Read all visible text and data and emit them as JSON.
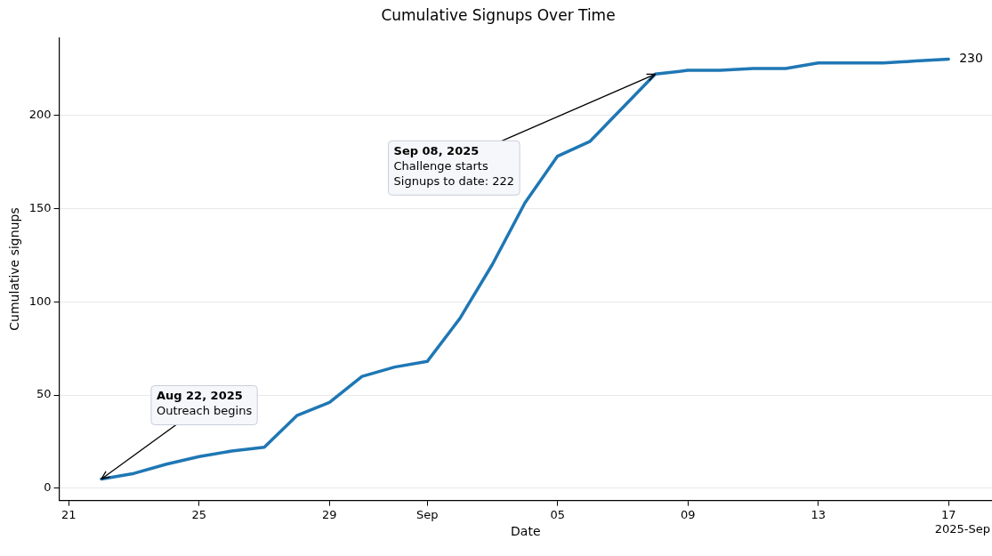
{
  "chart_data": {
    "type": "line",
    "title": "Cumulative Signups Over Time",
    "xlabel": "Date",
    "ylabel": "Cumulative signups",
    "x": [
      "2025-08-22",
      "2025-08-23",
      "2025-08-24",
      "2025-08-25",
      "2025-08-26",
      "2025-08-27",
      "2025-08-28",
      "2025-08-29",
      "2025-08-30",
      "2025-08-31",
      "2025-09-01",
      "2025-09-02",
      "2025-09-03",
      "2025-09-04",
      "2025-09-05",
      "2025-09-06",
      "2025-09-07",
      "2025-09-08",
      "2025-09-09",
      "2025-09-10",
      "2025-09-11",
      "2025-09-12",
      "2025-09-13",
      "2025-09-14",
      "2025-09-15",
      "2025-09-16",
      "2025-09-17"
    ],
    "series": [
      {
        "color": "#1f77b4",
        "values": [
          5,
          8,
          13,
          17,
          20,
          22,
          39,
          46,
          60,
          65,
          68,
          91,
          120,
          153,
          178,
          186,
          204,
          222,
          224,
          224,
          225,
          225,
          228,
          228,
          228,
          229,
          230
        ],
        "value_labels": [
          null,
          null,
          null,
          null,
          null,
          null,
          null,
          null,
          null,
          null,
          null,
          null,
          null,
          null,
          null,
          null,
          null,
          null,
          null,
          null,
          null,
          null,
          null,
          null,
          null,
          null,
          "230"
        ]
      }
    ],
    "xlim": [
      "2025-08-20T17:00",
      "2025-09-18T08:00"
    ],
    "xticks": [
      {
        "value": "2025-08-21",
        "label": "21"
      },
      {
        "value": "2025-08-25",
        "label": "25"
      },
      {
        "value": "2025-08-29",
        "label": "29"
      },
      {
        "value": "2025-09-01",
        "label": "Sep"
      },
      {
        "value": "2025-09-05",
        "label": "05"
      },
      {
        "value": "2025-09-09",
        "label": "09"
      },
      {
        "value": "2025-09-13",
        "label": "13"
      },
      {
        "value": "2025-09-17",
        "label": "17"
      }
    ],
    "ylim": [
      -6.5,
      241.5
    ],
    "yticks": [
      0,
      50,
      100,
      150,
      200
    ],
    "grid": "y",
    "legend": false,
    "marker": "none",
    "line_style": "solid",
    "annotations": [
      {
        "text": "Aug 22, 2025\nOutreach begins",
        "x": "2025-08-22",
        "y": 5
      },
      {
        "text": "Sep 08, 2025\nChallenge starts\nSignups to date: 222",
        "x": "2025-09-08",
        "y": 222
      },
      "2025-Sep"
    ]
  }
}
